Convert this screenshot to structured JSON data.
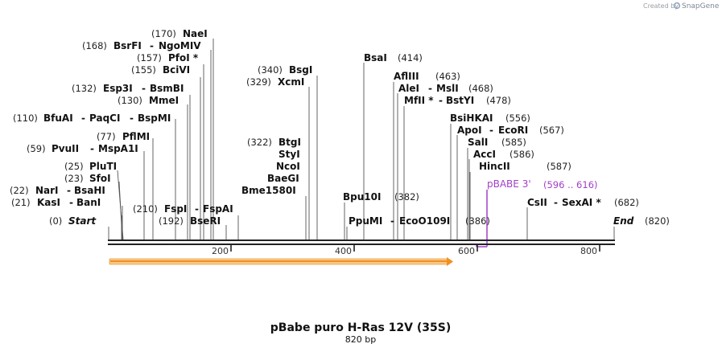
{
  "credit": {
    "text": "Created by",
    "brand": "SnapGene"
  },
  "title": "pBabe puro H-Ras 12V (35S)",
  "subtitle": "820 bp",
  "sequence_length": 820,
  "ruler": {
    "ticks": [
      200,
      400,
      600,
      800
    ]
  },
  "sites": [
    {
      "pos": "(0)",
      "names": [
        "Start"
      ],
      "bp": 0,
      "italic": true
    },
    {
      "pos": "(21)",
      "names": [
        "KasI",
        "BanI"
      ],
      "bp": 21
    },
    {
      "pos": "(22)",
      "names": [
        "NarI",
        "BsaHI"
      ],
      "bp": 22
    },
    {
      "pos": "(23)",
      "names": [
        "SfoI"
      ],
      "bp": 23
    },
    {
      "pos": "(25)",
      "names": [
        "PluTI"
      ],
      "bp": 25
    },
    {
      "pos": "(59)",
      "names": [
        "PvuII",
        "MspA1I"
      ],
      "bp": 59
    },
    {
      "pos": "(77)",
      "names": [
        "PflMI"
      ],
      "bp": 77
    },
    {
      "pos": "(110)",
      "names": [
        "BfuAI",
        "PaqCI",
        "BspMI"
      ],
      "bp": 110
    },
    {
      "pos": "(130)",
      "names": [
        "MmeI"
      ],
      "bp": 130
    },
    {
      "pos": "(132)",
      "names": [
        "Esp3I",
        "BsmBI"
      ],
      "bp": 132
    },
    {
      "pos": "(155)",
      "names": [
        "BciVI"
      ],
      "bp": 155
    },
    {
      "pos": "(157)",
      "names": [
        "PfoI *"
      ],
      "bp": 157
    },
    {
      "pos": "(168)",
      "names": [
        "BsrFI",
        "NgoMIV"
      ],
      "bp": 168
    },
    {
      "pos": "(170)",
      "names": [
        "NaeI"
      ],
      "bp": 170
    },
    {
      "pos": "(192)",
      "names": [
        "BseRI"
      ],
      "bp": 192
    },
    {
      "pos": "(210)",
      "names": [
        "FspI",
        "FspAI"
      ],
      "bp": 210
    },
    {
      "pos": "(322)",
      "names": [
        "BtgI",
        "StyI",
        "NcoI",
        "BaeGI",
        "Bme1580I"
      ],
      "bp": 322
    },
    {
      "pos": "(329)",
      "names": [
        "XcmI"
      ],
      "bp": 329
    },
    {
      "pos": "(340)",
      "names": [
        "BsgI"
      ],
      "bp": 340
    },
    {
      "pos": "(382)",
      "names": [
        "Bpu10I"
      ],
      "bp": 382
    },
    {
      "pos": "(386)",
      "names": [
        "PpuMI",
        "EcoO109I"
      ],
      "bp": 386
    },
    {
      "pos": "(414)",
      "names": [
        "BsaI"
      ],
      "bp": 414
    },
    {
      "pos": "(463)",
      "names": [
        "AflIII"
      ],
      "bp": 463
    },
    {
      "pos": "(468)",
      "names": [
        "AleI",
        "MslI"
      ],
      "bp": 468
    },
    {
      "pos": "(478)",
      "names": [
        "MfII *",
        "BstYI"
      ],
      "bp": 478
    },
    {
      "pos": "(556)",
      "names": [
        "BsiHKAI"
      ],
      "bp": 556
    },
    {
      "pos": "(567)",
      "names": [
        "ApoI",
        "EcoRI"
      ],
      "bp": 567
    },
    {
      "pos": "(585)",
      "names": [
        "SalI"
      ],
      "bp": 585
    },
    {
      "pos": "(586)",
      "names": [
        "AccI"
      ],
      "bp": 586
    },
    {
      "pos": "(587)",
      "names": [
        "HincII"
      ],
      "bp": 587
    },
    {
      "pos": "(682)",
      "names": [
        "CsII",
        "SexAI *"
      ],
      "bp": 682
    },
    {
      "pos": "(820)",
      "names": [
        "End"
      ],
      "bp": 820,
      "italic": true
    }
  ],
  "primer": {
    "name": "pBABE 3'",
    "range": "(596 .. 616)",
    "start": 596,
    "end": 616,
    "color": "#a23fc9"
  },
  "feature": {
    "start": 1,
    "end": 560,
    "color": "#f0a020"
  }
}
